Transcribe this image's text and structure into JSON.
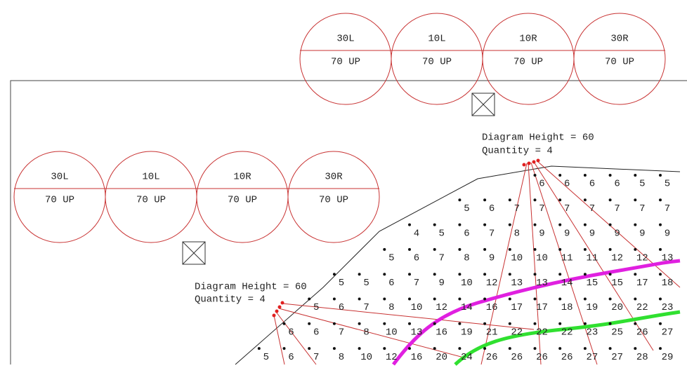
{
  "circle_groups": [
    [
      {
        "top": "30L",
        "bottom": "70 UP"
      },
      {
        "top": "10L",
        "bottom": "70 UP"
      },
      {
        "top": "10R",
        "bottom": "70 UP"
      },
      {
        "top": "30R",
        "bottom": "70 UP"
      }
    ],
    [
      {
        "top": "30L",
        "bottom": "70 UP"
      },
      {
        "top": "10L",
        "bottom": "70 UP"
      },
      {
        "top": "10R",
        "bottom": "70 UP"
      },
      {
        "top": "30R",
        "bottom": "70 UP"
      }
    ]
  ],
  "annotations": [
    {
      "height": "Diagram Height = 60",
      "quantity": "Quantity = 4"
    },
    {
      "height": "Diagram Height = 60",
      "quantity": "Quantity = 4"
    }
  ],
  "grid_rows": [
    [
      "6",
      "6",
      "6",
      "6",
      "5",
      "5"
    ],
    [
      "5",
      "6",
      "7",
      "7",
      "7",
      "7",
      "7",
      "7",
      "7"
    ],
    [
      "4",
      "5",
      "6",
      "7",
      "8",
      "9",
      "9",
      "9",
      "9",
      "9",
      "9"
    ],
    [
      "5",
      "6",
      "7",
      "8",
      "9",
      "10",
      "10",
      "11",
      "11",
      "12",
      "12",
      "13"
    ],
    [
      "5",
      "5",
      "6",
      "7",
      "9",
      "10",
      "12",
      "13",
      "13",
      "14",
      "15",
      "15",
      "17",
      "18"
    ],
    [
      "5",
      "6",
      "7",
      "8",
      "10",
      "12",
      "14",
      "16",
      "17",
      "17",
      "18",
      "19",
      "20",
      "22",
      "23"
    ],
    [
      "6",
      "6",
      "7",
      "8",
      "10",
      "13",
      "16",
      "19",
      "21",
      "22",
      "22",
      "22",
      "23",
      "25",
      "26",
      "27"
    ],
    [
      "5",
      "6",
      "7",
      "8",
      "10",
      "12",
      "16",
      "20",
      "24",
      "26",
      "26",
      "26",
      "26",
      "27",
      "27",
      "28",
      "29"
    ]
  ]
}
